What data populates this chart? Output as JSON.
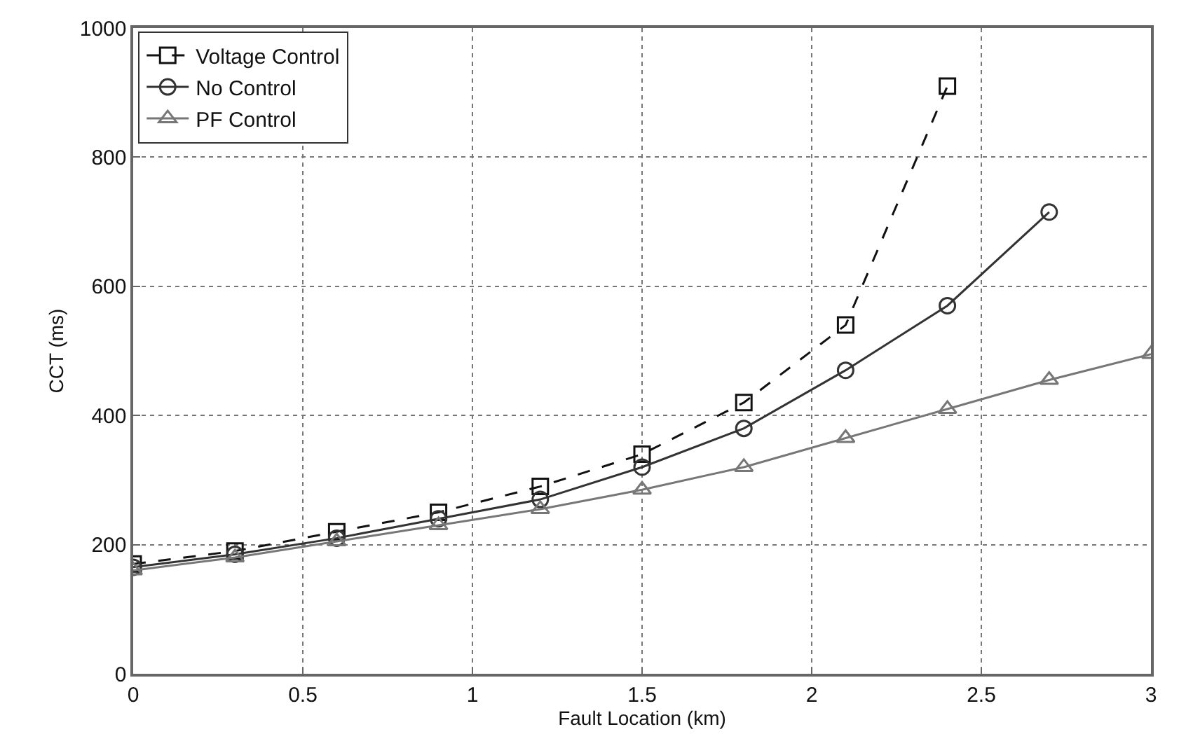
{
  "chart_data": {
    "type": "line",
    "xlabel": "Fault Location (km)",
    "ylabel": "CCT (ms)",
    "xlim": [
      0,
      3
    ],
    "xticks": [
      0,
      0.5,
      1,
      1.5,
      2,
      2.5,
      3
    ],
    "ylim": [
      0,
      1000
    ],
    "yticks": [
      0,
      200,
      400,
      600,
      800,
      1000
    ],
    "grid": true,
    "legend": "top left",
    "series": [
      {
        "name": "Voltage Control",
        "color": "#111111",
        "marker": "square",
        "line_style": "dashed",
        "x": [
          0,
          0.3,
          0.6,
          0.9,
          1.2,
          1.5,
          1.8,
          2.1,
          2.4
        ],
        "values": [
          170,
          190,
          220,
          250,
          290,
          340,
          420,
          540,
          910
        ]
      },
      {
        "name": "No Control",
        "color": "#333333",
        "marker": "circle",
        "line_style": "solid",
        "x": [
          0,
          0.3,
          0.6,
          0.9,
          1.2,
          1.5,
          1.8,
          2.1,
          2.4,
          2.7
        ],
        "values": [
          165,
          185,
          210,
          240,
          270,
          320,
          380,
          470,
          570,
          715
        ]
      },
      {
        "name": "PF Control",
        "color": "#777777",
        "marker": "triangle",
        "line_style": "solid",
        "x": [
          0,
          0.3,
          0.6,
          0.9,
          1.2,
          1.5,
          1.8,
          2.1,
          2.4,
          2.7,
          3.0
        ],
        "values": [
          160,
          180,
          205,
          230,
          255,
          285,
          320,
          365,
          410,
          455,
          495
        ]
      }
    ]
  }
}
